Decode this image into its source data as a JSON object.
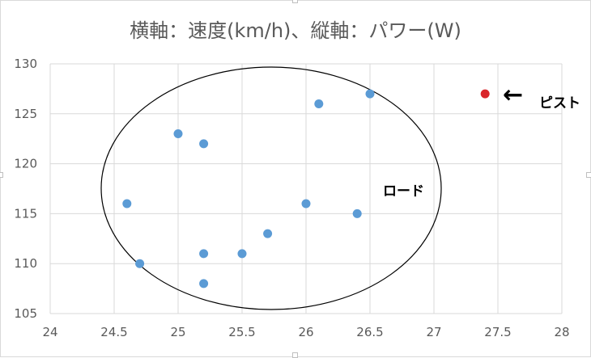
{
  "chart_data": {
    "type": "scatter",
    "title": "横軸：速度(km/h)、縦軸：パワー(W)",
    "xlim": [
      24,
      28
    ],
    "ylim": [
      105,
      130
    ],
    "x_ticks": [
      "24",
      "24.5",
      "25",
      "25.5",
      "26",
      "26.5",
      "27",
      "27.5",
      "28"
    ],
    "y_ticks": [
      "105",
      "110",
      "115",
      "120",
      "125",
      "130"
    ],
    "grid": true,
    "series": [
      {
        "color": "#5b9bd5",
        "points": [
          {
            "x": 24.6,
            "y": 116
          },
          {
            "x": 24.7,
            "y": 110
          },
          {
            "x": 25.0,
            "y": 123
          },
          {
            "x": 25.2,
            "y": 122
          },
          {
            "x": 25.2,
            "y": 111
          },
          {
            "x": 25.2,
            "y": 108
          },
          {
            "x": 25.5,
            "y": 111
          },
          {
            "x": 25.7,
            "y": 113
          },
          {
            "x": 26.0,
            "y": 116
          },
          {
            "x": 26.1,
            "y": 126
          },
          {
            "x": 26.4,
            "y": 115
          },
          {
            "x": 26.5,
            "y": 127
          }
        ]
      },
      {
        "color": "#d9262b",
        "points": [
          {
            "x": 27.4,
            "y": 127
          }
        ]
      }
    ],
    "annotations": {
      "road_label": "ロード",
      "pist_label": "ピスト",
      "arrow_glyph": "←"
    }
  }
}
